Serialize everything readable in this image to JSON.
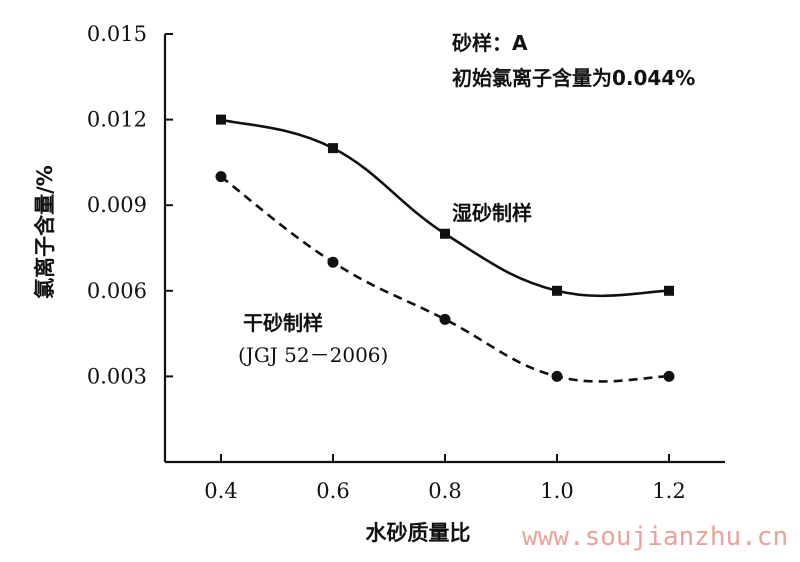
{
  "chart_data": {
    "type": "line",
    "xlabel": "水砂质量比",
    "ylabel": "氯离子含量/%",
    "xlim": [
      0.3,
      1.3
    ],
    "ylim": [
      0.0,
      0.015
    ],
    "x_ticks": [
      "0.4",
      "0.6",
      "0.8",
      "1.0",
      "1.2"
    ],
    "y_ticks": [
      "0.003",
      "0.006",
      "0.009",
      "0.012",
      "0.015"
    ],
    "x": [
      0.4,
      0.6,
      0.8,
      1.0,
      1.2
    ],
    "series": [
      {
        "name": "湿砂制样",
        "values": [
          0.012,
          0.011,
          0.008,
          0.006,
          0.006
        ],
        "line_style": "solid",
        "marker": "square"
      },
      {
        "name": "干砂制样",
        "values": [
          0.01,
          0.007,
          0.005,
          0.003,
          0.003
        ],
        "line_style": "dashed",
        "marker": "circle"
      }
    ],
    "annotations": {
      "sample": "砂样：A",
      "initial": "初始氯离子含量为0.044%",
      "wet_label": "湿砂制样",
      "dry_label": "干砂制样",
      "dry_standard": "(JGJ 52－2006)"
    },
    "grid": false
  },
  "watermark": "www.soujianzhu.cn",
  "colors": {
    "ink": "#111111",
    "watermark": "#e8a39a"
  }
}
